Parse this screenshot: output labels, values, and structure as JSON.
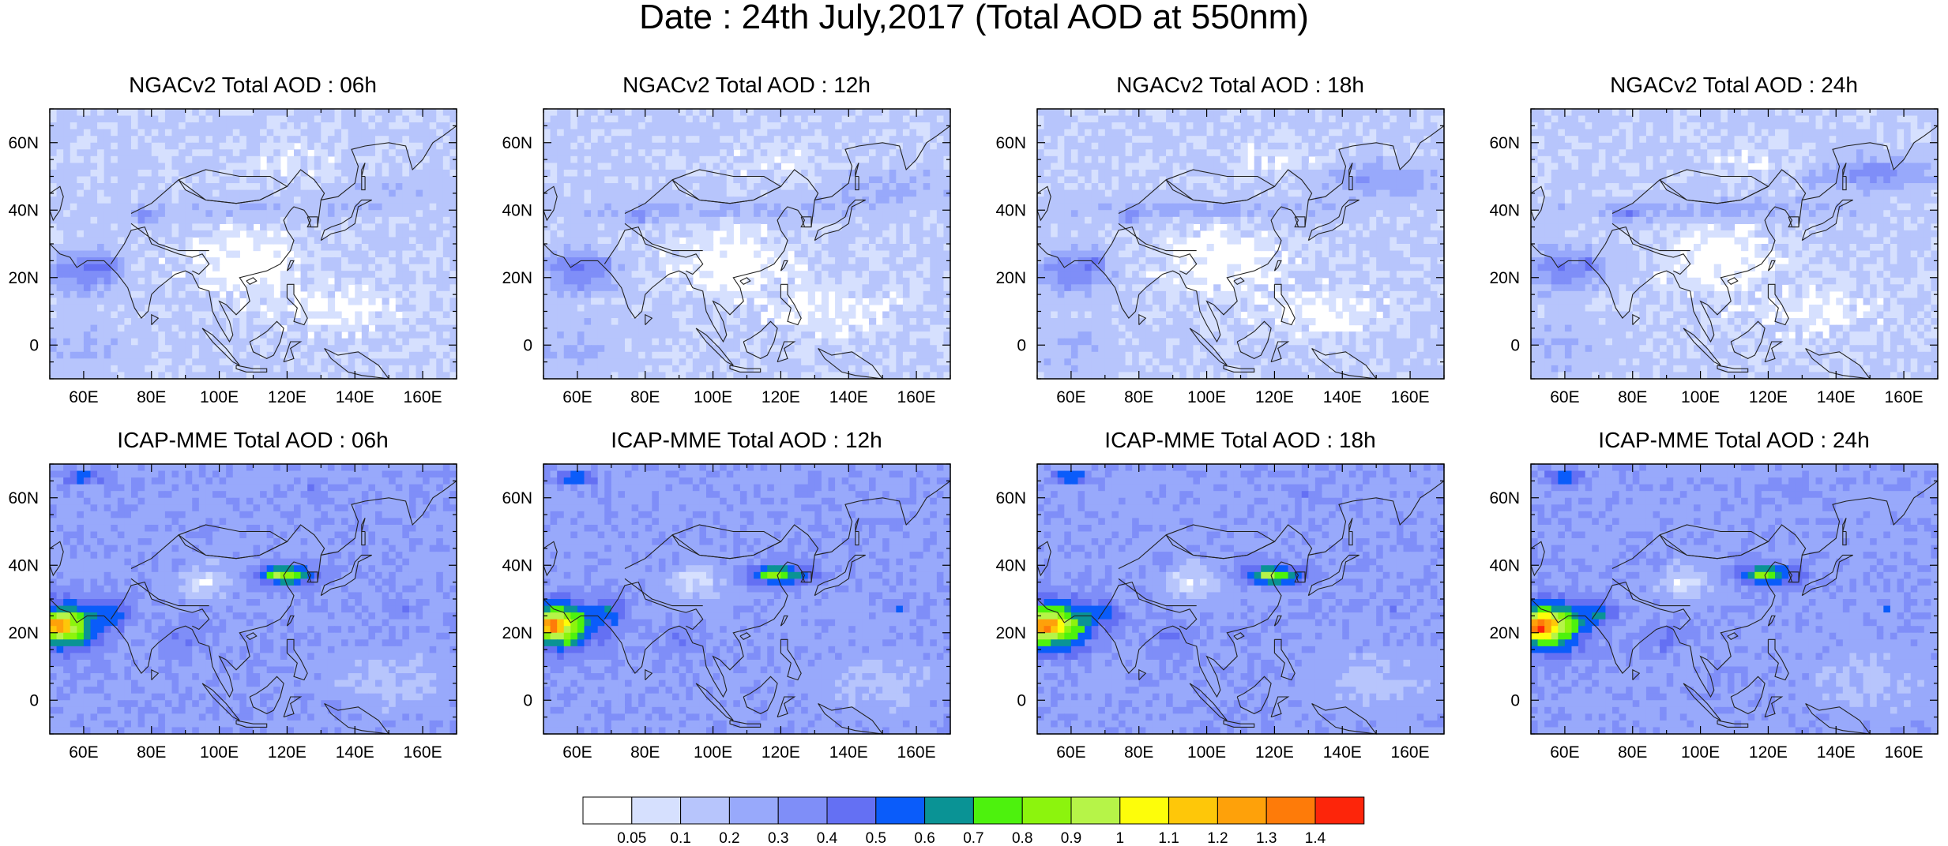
{
  "title": "Date : 24th July,2017 (Total AOD at 550nm)",
  "panels": [
    {
      "title": "NGACv2 Total AOD : 06h",
      "model": "NGACv2",
      "hour": "06h"
    },
    {
      "title": "NGACv2 Total AOD : 12h",
      "model": "NGACv2",
      "hour": "12h"
    },
    {
      "title": "NGACv2 Total AOD : 18h",
      "model": "NGACv2",
      "hour": "18h"
    },
    {
      "title": "NGACv2 Total AOD : 24h",
      "model": "NGACv2",
      "hour": "24h"
    },
    {
      "title": "ICAP-MME Total AOD : 06h",
      "model": "ICAP-MME",
      "hour": "06h"
    },
    {
      "title": "ICAP-MME Total AOD : 12h",
      "model": "ICAP-MME",
      "hour": "12h"
    },
    {
      "title": "ICAP-MME Total AOD : 18h",
      "model": "ICAP-MME",
      "hour": "18h"
    },
    {
      "title": "ICAP-MME Total AOD : 24h",
      "model": "ICAP-MME",
      "hour": "24h"
    }
  ],
  "map": {
    "lon_range": [
      50,
      170
    ],
    "lat_range": [
      -10,
      70
    ],
    "x_ticks": [
      60,
      80,
      100,
      120,
      140,
      160
    ],
    "y_ticks": [
      0,
      20,
      40,
      60
    ],
    "x_tick_labels": [
      "60E",
      "80E",
      "100E",
      "120E",
      "140E",
      "160E"
    ],
    "y_tick_labels": [
      "0",
      "20N",
      "40N",
      "60N"
    ]
  },
  "colorbar": {
    "labels": [
      "0.05",
      "0.1",
      "0.2",
      "0.3",
      "0.4",
      "0.5",
      "0.6",
      "0.7",
      "0.8",
      "0.9",
      "1",
      "1.1",
      "1.2",
      "1.3",
      "1.4"
    ],
    "colors": [
      "#ffffff",
      "#d6e0fe",
      "#b7c5fc",
      "#98a9fb",
      "#7f8ef8",
      "#6470f3",
      "#0a5cfa",
      "#0a9395",
      "#4df20d",
      "#8cf40d",
      "#b6f448",
      "#fdfd0a",
      "#fec709",
      "#fea10a",
      "#fe7b09",
      "#fd250a"
    ]
  }
}
